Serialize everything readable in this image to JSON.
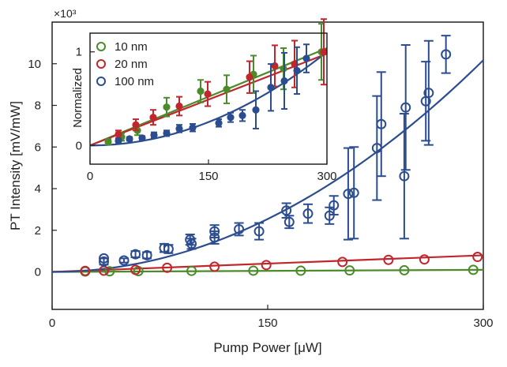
{
  "chart_data": [
    {
      "type": "scatter",
      "panel": "main",
      "xlabel": "Pump Power [μW]",
      "ylabel": "PT Intensity [mV/mW]",
      "y_multiplier": "×10³",
      "xlim": [
        0,
        300
      ],
      "ylim": [
        -1.8,
        12
      ],
      "xticks": [
        0,
        150,
        300
      ],
      "yticks": [
        0,
        2,
        4,
        6,
        8,
        10
      ],
      "series": [
        {
          "name": "10 nm",
          "color": "#4b8b2a",
          "marker": "open-circle",
          "points": [
            {
              "x": 23,
              "y": 0.02,
              "err": 0
            },
            {
              "x": 40,
              "y": 0.03,
              "err": 0
            },
            {
              "x": 60,
              "y": 0.04,
              "err": 0
            },
            {
              "x": 97,
              "y": 0.05,
              "err": 0
            },
            {
              "x": 140,
              "y": 0.06,
              "err": 0
            },
            {
              "x": 173,
              "y": 0.06,
              "err": 0
            },
            {
              "x": 207,
              "y": 0.07,
              "err": 0
            },
            {
              "x": 245,
              "y": 0.08,
              "err": 0
            },
            {
              "x": 293,
              "y": 0.1,
              "err": 0
            }
          ],
          "fit": {
            "kind": "linear",
            "x0": 0,
            "y0": 0,
            "x1": 300,
            "y1": 0.1
          }
        },
        {
          "name": "20 nm",
          "color": "#c0272d",
          "marker": "open-circle",
          "points": [
            {
              "x": 23,
              "y": 0.05,
              "err": 0
            },
            {
              "x": 36,
              "y": 0.06,
              "err": 0
            },
            {
              "x": 58,
              "y": 0.1,
              "err": 0
            },
            {
              "x": 80,
              "y": 0.2,
              "err": 0
            },
            {
              "x": 113,
              "y": 0.25,
              "err": 0
            },
            {
              "x": 149,
              "y": 0.33,
              "err": 0
            },
            {
              "x": 202,
              "y": 0.48,
              "err": 0
            },
            {
              "x": 234,
              "y": 0.58,
              "err": 0
            },
            {
              "x": 259,
              "y": 0.6,
              "err": 0
            },
            {
              "x": 296,
              "y": 0.72,
              "err": 0
            }
          ],
          "fit": {
            "kind": "linear",
            "x0": 0,
            "y0": 0,
            "x1": 300,
            "y1": 0.8
          }
        },
        {
          "name": "100 nm",
          "color": "#2b4d8f",
          "marker": "open-circle",
          "points": [
            {
              "x": 36,
              "y": 0.5,
              "err": 0.15
            },
            {
              "x": 36,
              "y": 0.65,
              "err": 0
            },
            {
              "x": 50,
              "y": 0.55,
              "err": 0.1
            },
            {
              "x": 58,
              "y": 0.85,
              "err": 0.15
            },
            {
              "x": 66,
              "y": 0.8,
              "err": 0.15
            },
            {
              "x": 78,
              "y": 1.15,
              "err": 0.2
            },
            {
              "x": 81,
              "y": 1.1,
              "err": 0.2
            },
            {
              "x": 96,
              "y": 1.55,
              "err": 0.25
            },
            {
              "x": 97,
              "y": 1.35,
              "err": 0.25
            },
            {
              "x": 113,
              "y": 1.95,
              "err": 0.3
            },
            {
              "x": 113,
              "y": 1.65,
              "err": 0.3
            },
            {
              "x": 130,
              "y": 2.05,
              "err": 0.3
            },
            {
              "x": 144,
              "y": 1.95,
              "err": 0.4
            },
            {
              "x": 163,
              "y": 2.95,
              "err": 0.35
            },
            {
              "x": 165,
              "y": 2.4,
              "err": 0.3
            },
            {
              "x": 178,
              "y": 2.8,
              "err": 0.45
            },
            {
              "x": 193,
              "y": 2.7,
              "err": 0.4
            },
            {
              "x": 196,
              "y": 3.2,
              "err": 0.45
            },
            {
              "x": 206,
              "y": 3.75,
              "err": 2.2
            },
            {
              "x": 210,
              "y": 3.8,
              "err": 2.2
            },
            {
              "x": 226,
              "y": 5.95,
              "err": 2.5
            },
            {
              "x": 229,
              "y": 7.1,
              "err": 2.5
            },
            {
              "x": 245,
              "y": 4.6,
              "err": 3.0
            },
            {
              "x": 246,
              "y": 7.9,
              "err": 3.0
            },
            {
              "x": 260,
              "y": 8.2,
              "err": 1.9
            },
            {
              "x": 262,
              "y": 8.6,
              "err": 2.5
            },
            {
              "x": 274,
              "y": 10.45,
              "err": 0.9
            }
          ],
          "fit": {
            "kind": "quadratic",
            "coefficient": 0.000113
          }
        }
      ]
    },
    {
      "type": "scatter",
      "panel": "inset",
      "ylabel": "Normalized",
      "xlim": [
        0,
        300
      ],
      "ylim": [
        -0.2,
        1.2
      ],
      "xticks": [
        0,
        150,
        300
      ],
      "yticks": [
        0,
        1
      ],
      "legend_position": "top-left",
      "series": [
        {
          "name": "10 nm",
          "color": "#4b8b2a",
          "points": [
            {
              "x": 23,
              "y": 0.04,
              "err": 0.03
            },
            {
              "x": 40,
              "y": 0.09,
              "err": 0.04
            },
            {
              "x": 60,
              "y": 0.16,
              "err": 0.05
            },
            {
              "x": 97,
              "y": 0.41,
              "err": 0.1
            },
            {
              "x": 140,
              "y": 0.58,
              "err": 0.12
            },
            {
              "x": 173,
              "y": 0.6,
              "err": 0.15
            },
            {
              "x": 207,
              "y": 0.76,
              "err": 0.2
            },
            {
              "x": 245,
              "y": 0.82,
              "err": 0.22
            },
            {
              "x": 293,
              "y": 1.0,
              "err": 0.3
            }
          ],
          "fit": {
            "kind": "linear",
            "x0": 0,
            "y0": 0.0,
            "x1": 300,
            "y1": 1.04
          }
        },
        {
          "name": "20 nm",
          "color": "#c0272d",
          "points": [
            {
              "x": 36,
              "y": 0.12,
              "err": 0.04
            },
            {
              "x": 58,
              "y": 0.22,
              "err": 0.06
            },
            {
              "x": 80,
              "y": 0.3,
              "err": 0.08
            },
            {
              "x": 113,
              "y": 0.42,
              "err": 0.1
            },
            {
              "x": 149,
              "y": 0.55,
              "err": 0.13
            },
            {
              "x": 202,
              "y": 0.73,
              "err": 0.17
            },
            {
              "x": 234,
              "y": 0.85,
              "err": 0.22
            },
            {
              "x": 259,
              "y": 0.87,
              "err": 0.25
            },
            {
              "x": 296,
              "y": 1.0,
              "err": 0.35
            }
          ],
          "fit": {
            "kind": "linear",
            "x0": 0,
            "y0": 0.0,
            "x1": 300,
            "y1": 0.98
          }
        },
        {
          "name": "100 nm",
          "color": "#2b4d8f",
          "points": [
            {
              "x": 36,
              "y": 0.05,
              "err": 0.02
            },
            {
              "x": 50,
              "y": 0.07,
              "err": 0.02
            },
            {
              "x": 66,
              "y": 0.08,
              "err": 0.02
            },
            {
              "x": 81,
              "y": 0.11,
              "err": 0.03
            },
            {
              "x": 97,
              "y": 0.13,
              "err": 0.03
            },
            {
              "x": 113,
              "y": 0.18,
              "err": 0.04
            },
            {
              "x": 130,
              "y": 0.19,
              "err": 0.04
            },
            {
              "x": 163,
              "y": 0.24,
              "err": 0.04
            },
            {
              "x": 178,
              "y": 0.3,
              "err": 0.05
            },
            {
              "x": 193,
              "y": 0.32,
              "err": 0.06
            },
            {
              "x": 210,
              "y": 0.38,
              "err": 0.2
            },
            {
              "x": 229,
              "y": 0.62,
              "err": 0.25
            },
            {
              "x": 246,
              "y": 0.69,
              "err": 0.3
            },
            {
              "x": 262,
              "y": 0.8,
              "err": 0.25
            },
            {
              "x": 274,
              "y": 0.93,
              "err": 0.15
            }
          ],
          "fit": {
            "kind": "quadratic",
            "coefficient": 1.11e-05
          }
        }
      ]
    }
  ]
}
